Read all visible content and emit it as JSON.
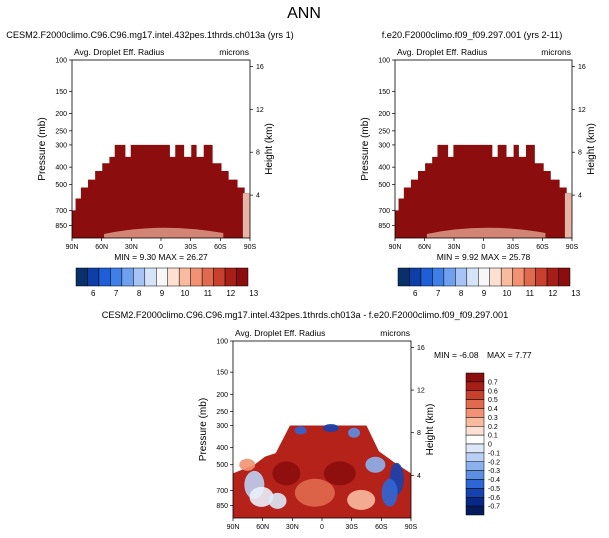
{
  "page_title": "ANN",
  "colors": {
    "dark_red": "#8b0d0d",
    "light_band": "#f2b9a3",
    "panel_bg": "#ffffff"
  },
  "chart_data": [
    {
      "type": "heatmap",
      "title": "CESM2.F2000climo.C96.C96.mg17.intel.432pes.1thrds.ch013a (yrs 1)",
      "subtitle": "Avg. Droplet Eff. Radius",
      "units": "microns",
      "xlabel": "",
      "ylabel": "Pressure (mb)",
      "ylabel_right": "Height (km)",
      "x_ticks": [
        "90N",
        "60N",
        "30N",
        "0",
        "30S",
        "60S",
        "90S"
      ],
      "y_ticks": [
        100,
        150,
        200,
        250,
        300,
        400,
        500,
        700,
        850
      ],
      "y_right_ticks": [
        16,
        12,
        8,
        4
      ],
      "ylim": [
        1000,
        100
      ],
      "min_max_label": "MIN =  9.30   MAX =  26.27",
      "colorbar": {
        "orientation": "horizontal",
        "labels": [
          "6",
          "7",
          "8",
          "9",
          "10",
          "11",
          "12",
          "13"
        ],
        "colors": [
          "#08306b",
          "#0d3fa6",
          "#1f5ed6",
          "#3f7fe8",
          "#6fa0f0",
          "#a6c4f5",
          "#d6e4fa",
          "#f7f7f7",
          "#fde0d2",
          "#f9bba0",
          "#f29272",
          "#e06a4e",
          "#c8402e",
          "#a51f18",
          "#8b0d0d"
        ]
      }
    },
    {
      "type": "heatmap",
      "title": "f.e20.F2000climo.f09_f09.297.001 (yrs 2-11)",
      "subtitle": "Avg. Droplet Eff. Radius",
      "units": "microns",
      "xlabel": "",
      "ylabel": "Pressure (mb)",
      "ylabel_right": "Height (km)",
      "x_ticks": [
        "90N",
        "60N",
        "30N",
        "0",
        "30S",
        "60S",
        "90S"
      ],
      "y_ticks": [
        100,
        150,
        200,
        250,
        300,
        400,
        500,
        700,
        850
      ],
      "y_right_ticks": [
        16,
        12,
        8,
        4
      ],
      "ylim": [
        1000,
        100
      ],
      "min_max_label": "MIN =  9.92   MAX =  25.78",
      "colorbar": {
        "orientation": "horizontal",
        "labels": [
          "6",
          "7",
          "8",
          "9",
          "10",
          "11",
          "12",
          "13"
        ],
        "colors": [
          "#08306b",
          "#0d3fa6",
          "#1f5ed6",
          "#3f7fe8",
          "#6fa0f0",
          "#a6c4f5",
          "#d6e4fa",
          "#f7f7f7",
          "#fde0d2",
          "#f9bba0",
          "#f29272",
          "#e06a4e",
          "#c8402e",
          "#a51f18",
          "#8b0d0d"
        ]
      }
    },
    {
      "type": "heatmap",
      "title": "CESM2.F2000climo.C96.C96.mg17.intel.432pes.1thrds.ch013a - f.e20.F2000climo.f09_f09.297.001",
      "subtitle": "Avg. Droplet Eff. Radius",
      "units": "microns",
      "xlabel": "",
      "ylabel": "Pressure (mb)",
      "ylabel_right": "Height (km)",
      "x_ticks": [
        "90N",
        "60N",
        "30N",
        "0",
        "30S",
        "60S",
        "90S"
      ],
      "y_ticks": [
        100,
        150,
        200,
        250,
        300,
        400,
        500,
        700,
        850
      ],
      "y_right_ticks": [
        16,
        12,
        8,
        4
      ],
      "ylim": [
        1000,
        100
      ],
      "min_label": "MIN = -6.08",
      "max_label": "MAX =  7.77",
      "colorbar": {
        "orientation": "vertical",
        "labels": [
          "0.7",
          "0.6",
          "0.5",
          "0.4",
          "0.3",
          "0.2",
          "0.1",
          "0",
          "-0.1",
          "-0.2",
          "-0.3",
          "-0.4",
          "-0.5",
          "-0.6",
          "-0.7"
        ],
        "colors": [
          "#8b0d0d",
          "#a51f18",
          "#c8402e",
          "#e06a4e",
          "#f29272",
          "#f9bba0",
          "#fde0d2",
          "#ffffff",
          "#dce8f8",
          "#b8d0f5",
          "#8cb2ee",
          "#5b8fe3",
          "#2f66d6",
          "#1443b0",
          "#082a85",
          "#041c5e"
        ]
      }
    }
  ]
}
